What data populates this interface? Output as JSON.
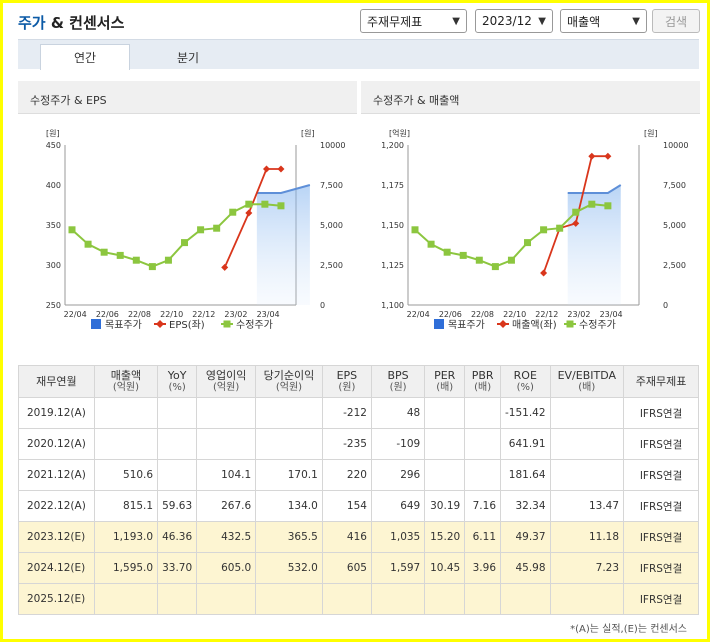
{
  "header": {
    "title": "주가",
    "title_amp": "&",
    "title_rest": "컨센서스"
  },
  "controls": {
    "report_type": "주재무제표",
    "period": "2023/12",
    "metric": "매출액",
    "search_label": "검색"
  },
  "tabs": [
    {
      "label": "연간"
    },
    {
      "label": "분기"
    }
  ],
  "panels": [
    {
      "title": "수정주가 & EPS"
    },
    {
      "title": "수정주가 & 매출액"
    }
  ],
  "chart_data": [
    {
      "type": "line",
      "title": "수정주가 & EPS",
      "left_unit": "[원]",
      "right_unit": "[원]",
      "x_ticks": [
        "22/04",
        "22/06",
        "22/08",
        "22/10",
        "22/12",
        "23/02",
        "23/04"
      ],
      "left_axis": {
        "ticks": [
          "450",
          "400",
          "350",
          "300",
          "250"
        ],
        "ylim": [
          250,
          450
        ]
      },
      "right_axis": {
        "ticks": [
          "10000",
          "7,500",
          "5,000",
          "2,500",
          "0"
        ],
        "ylim": [
          0,
          10000
        ]
      },
      "colors": {
        "target": "#2f6ed8",
        "eps": "#d9361c",
        "price": "#8cc63f"
      },
      "series": [
        {
          "name": "목표주가",
          "axis": "right",
          "x": [
            11.5,
            13.0,
            14.8
          ],
          "values": [
            7000,
            7000,
            7500
          ]
        },
        {
          "name": "EPS(좌)",
          "axis": "left",
          "x": [
            9.5,
            11.0,
            12.1,
            13.0
          ],
          "values": [
            297,
            365,
            420,
            420
          ]
        },
        {
          "name": "수정주가",
          "axis": "right",
          "x": [
            0,
            1,
            2,
            3,
            4,
            5,
            6,
            7,
            8,
            9,
            10,
            11,
            12,
            13
          ],
          "values": [
            4700,
            3800,
            3300,
            3100,
            2800,
            2400,
            2800,
            3900,
            4700,
            4800,
            5800,
            6300,
            6300,
            6200
          ]
        }
      ],
      "legend": {
        "items": [
          "목표주가",
          "EPS(좌)",
          "수정주가"
        ],
        "placement": "bottom"
      }
    },
    {
      "type": "line",
      "title": "수정주가 & 매출액",
      "left_unit": "[억원]",
      "right_unit": "[원]",
      "x_ticks": [
        "22/04",
        "22/06",
        "22/08",
        "22/10",
        "22/12",
        "23/02",
        "23/04"
      ],
      "left_axis": {
        "ticks": [
          "1,200",
          "1,175",
          "1,150",
          "1,125",
          "1,100"
        ],
        "ylim": [
          1100,
          1200
        ]
      },
      "right_axis": {
        "ticks": [
          "10000",
          "7,500",
          "5,000",
          "2,500",
          "0"
        ],
        "ylim": [
          0,
          10000
        ]
      },
      "colors": {
        "target": "#2f6ed8",
        "revenue": "#d9361c",
        "price": "#8cc63f"
      },
      "series": [
        {
          "name": "목표주가",
          "axis": "right",
          "x": [
            9.5,
            12.0,
            12.8
          ],
          "values": [
            7000,
            7000,
            7500
          ]
        },
        {
          "name": "매출액(좌)",
          "axis": "left",
          "x": [
            8.0,
            9.0,
            10.0,
            11.0,
            12.0
          ],
          "values": [
            1120,
            1148,
            1151,
            1193,
            1193
          ]
        },
        {
          "name": "수정주가",
          "axis": "right",
          "x": [
            0,
            1,
            2,
            3,
            4,
            5,
            6,
            7,
            8,
            9,
            10,
            11,
            12
          ],
          "values": [
            4700,
            3800,
            3300,
            3100,
            2800,
            2400,
            2800,
            3900,
            4700,
            4800,
            5800,
            6300,
            6200
          ]
        }
      ],
      "legend": {
        "items": [
          "목표주가",
          "매출액(좌)",
          "수정주가"
        ],
        "placement": "bottom"
      }
    }
  ],
  "table": {
    "columns": [
      {
        "label": "재무연월",
        "sub": ""
      },
      {
        "label": "매출액",
        "sub": "(억원)"
      },
      {
        "label": "YoY",
        "sub": "(%)"
      },
      {
        "label": "영업이익",
        "sub": "(억원)"
      },
      {
        "label": "당기순이익",
        "sub": "(억원)"
      },
      {
        "label": "EPS",
        "sub": "(원)"
      },
      {
        "label": "BPS",
        "sub": "(원)"
      },
      {
        "label": "PER",
        "sub": "(배)"
      },
      {
        "label": "PBR",
        "sub": "(배)"
      },
      {
        "label": "ROE",
        "sub": "(%)"
      },
      {
        "label": "EV/EBITDA",
        "sub": "(배)"
      },
      {
        "label": "주재무제표",
        "sub": ""
      }
    ],
    "rows": [
      {
        "estimate": false,
        "cells": [
          "2019.12(A)",
          "",
          "",
          "",
          "",
          "-212",
          "48",
          "",
          "",
          "-151.42",
          "",
          "IFRS연결"
        ]
      },
      {
        "estimate": false,
        "cells": [
          "2020.12(A)",
          "",
          "",
          "",
          "",
          "-235",
          "-109",
          "",
          "",
          "641.91",
          "",
          "IFRS연결"
        ]
      },
      {
        "estimate": false,
        "cells": [
          "2021.12(A)",
          "510.6",
          "",
          "104.1",
          "170.1",
          "220",
          "296",
          "",
          "",
          "181.64",
          "",
          "IFRS연결"
        ]
      },
      {
        "estimate": false,
        "cells": [
          "2022.12(A)",
          "815.1",
          "59.63",
          "267.6",
          "134.0",
          "154",
          "649",
          "30.19",
          "7.16",
          "32.34",
          "13.47",
          "IFRS연결"
        ]
      },
      {
        "estimate": true,
        "cells": [
          "2023.12(E)",
          "1,193.0",
          "46.36",
          "432.5",
          "365.5",
          "416",
          "1,035",
          "15.20",
          "6.11",
          "49.37",
          "11.18",
          "IFRS연결"
        ]
      },
      {
        "estimate": true,
        "cells": [
          "2024.12(E)",
          "1,595.0",
          "33.70",
          "605.0",
          "532.0",
          "605",
          "1,597",
          "10.45",
          "3.96",
          "45.98",
          "7.23",
          "IFRS연결"
        ]
      },
      {
        "estimate": true,
        "cells": [
          "2025.12(E)",
          "",
          "",
          "",
          "",
          "",
          "",
          "",
          "",
          "",
          "",
          "IFRS연결"
        ]
      }
    ]
  },
  "footnote": "*(A)는 실적,(E)는 컨센서스"
}
